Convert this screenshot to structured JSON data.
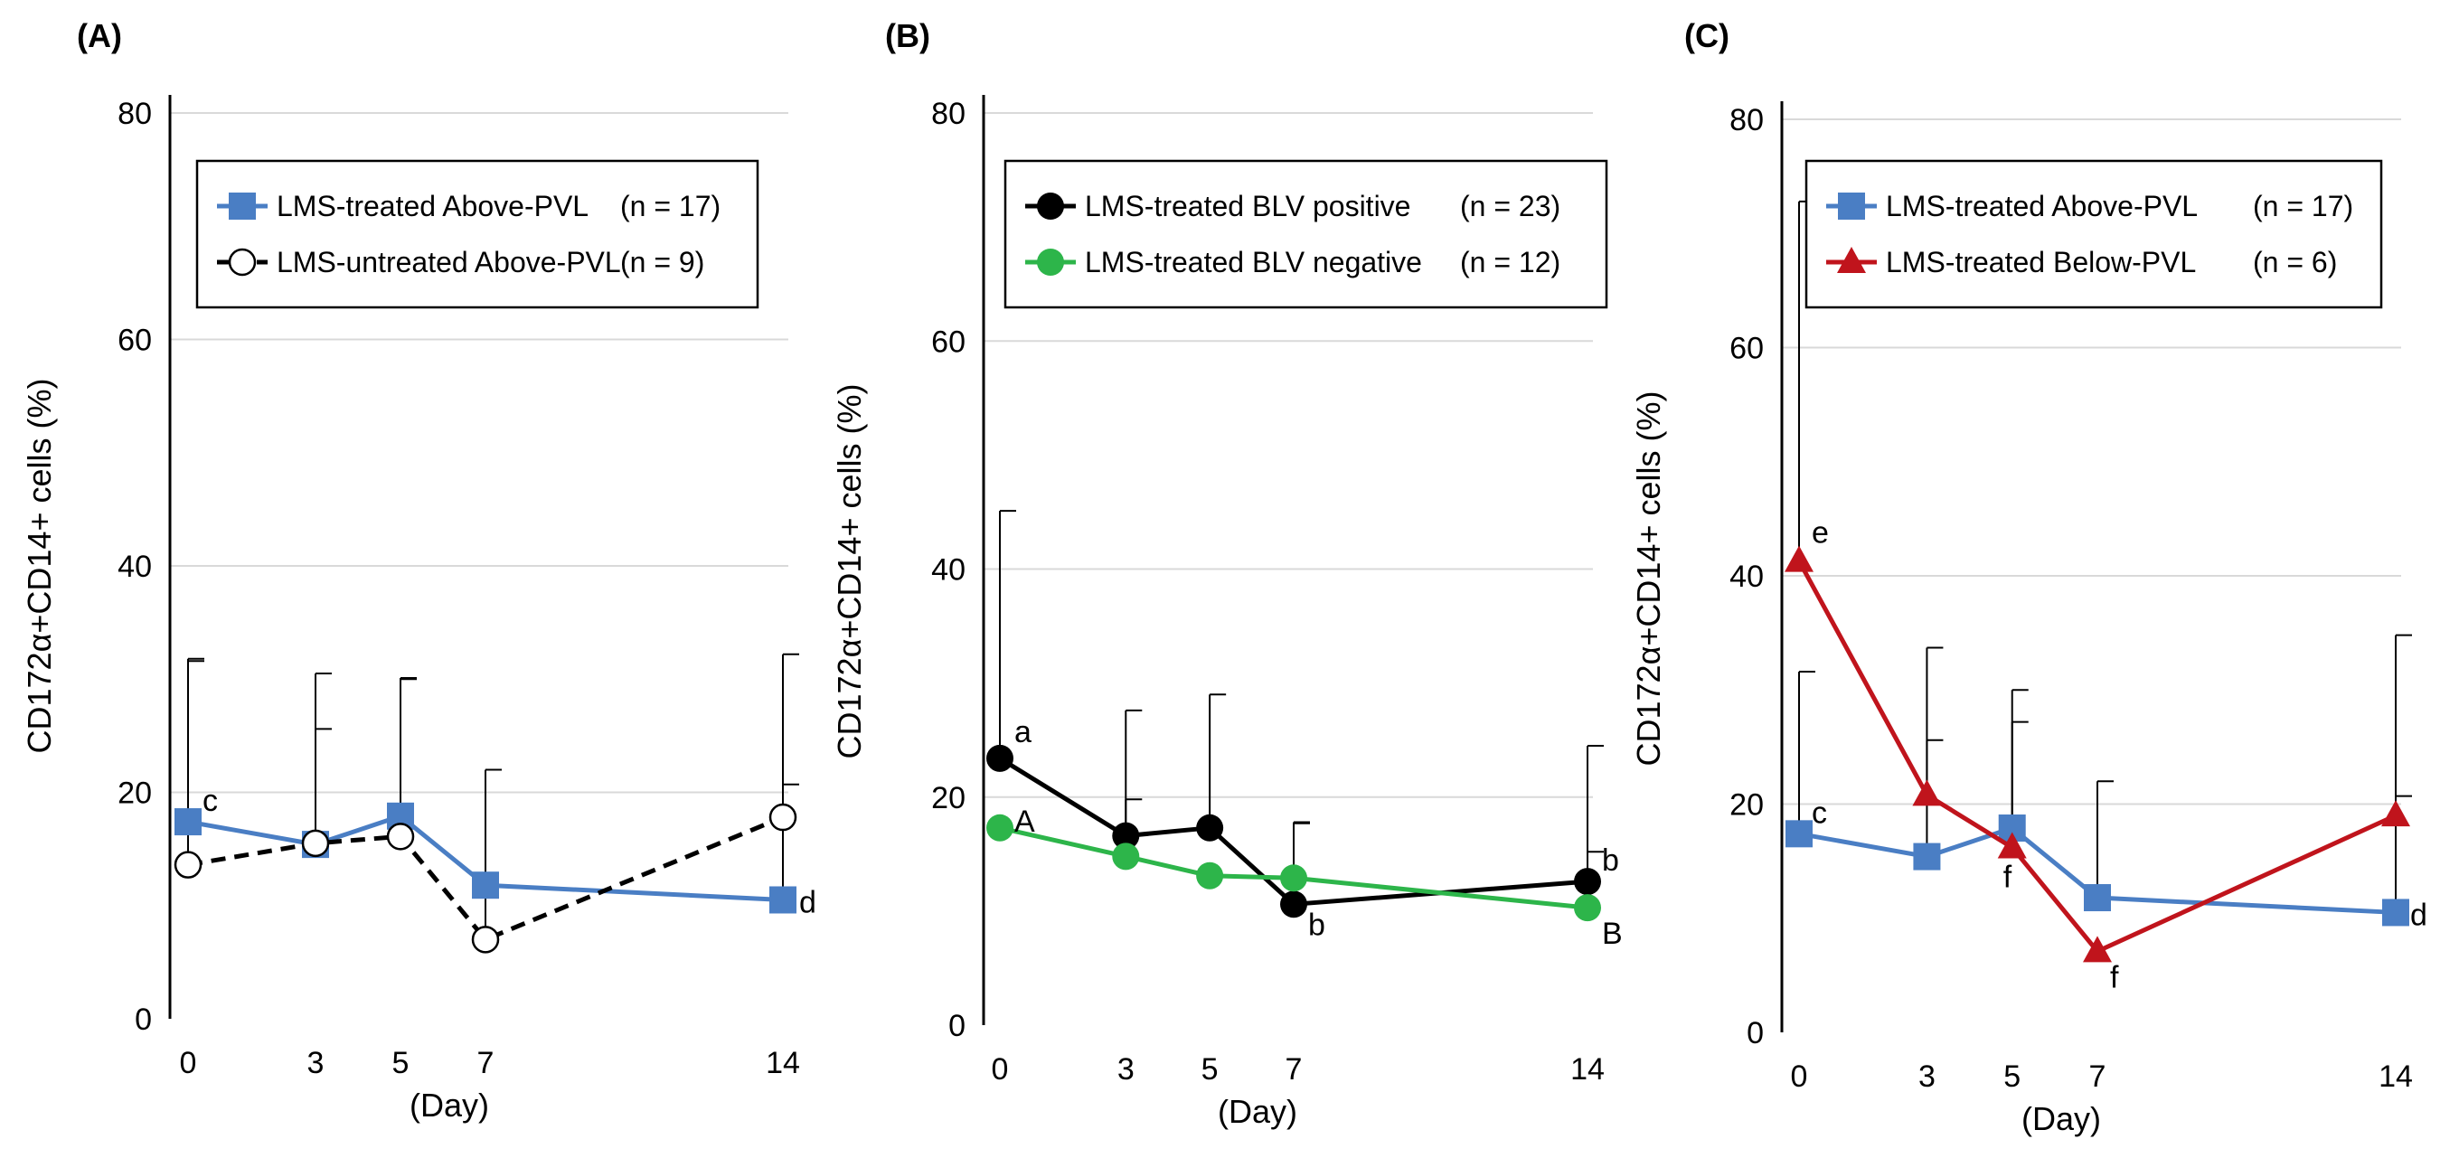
{
  "chart_data": [
    {
      "panel": "(A)",
      "type": "line",
      "ylabel": "CD172α+CD14+ cells (%)",
      "xlabel": "(Day)",
      "ylim": [
        0,
        80
      ],
      "yticks": [
        0,
        20,
        40,
        60,
        80
      ],
      "xlim": [
        -1,
        15
      ],
      "xticks": [
        0,
        3,
        5,
        7,
        14
      ],
      "grid": true,
      "legend_position": "top-center",
      "series": [
        {
          "name": "LMS-treated Above-PVL",
          "n": "(n = 17)",
          "color": "#4a7ec4",
          "marker": "square",
          "dash": false,
          "x": [
            0,
            3,
            5,
            7,
            14
          ],
          "values": [
            17.4,
            15.4,
            17.9,
            11.8,
            10.5
          ],
          "err": [
            14.2,
            10.2,
            12.1,
            10.2,
            10.2
          ]
        },
        {
          "name": "LMS-untreated Above-PVL",
          "n": "(n = 9)",
          "color": "#000000",
          "marker": "open-circle",
          "dash": true,
          "x": [
            0,
            3,
            5,
            7,
            14
          ],
          "values": [
            13.6,
            15.5,
            16.1,
            7.0,
            17.8
          ],
          "err": [
            18.2,
            15.0,
            14.0,
            15.0,
            14.4
          ]
        }
      ],
      "annotations": [
        {
          "text": "c",
          "x": 0,
          "y": 17.4
        },
        {
          "text": "d",
          "x": 14,
          "y": 10.5
        }
      ]
    },
    {
      "panel": "(B)",
      "type": "line",
      "ylabel": "CD172α+CD14+ cells (%)",
      "xlabel": "(Day)",
      "ylim": [
        0,
        80
      ],
      "yticks": [
        0,
        20,
        40,
        60,
        80
      ],
      "xlim": [
        -1,
        15
      ],
      "xticks": [
        0,
        3,
        5,
        7,
        14
      ],
      "grid": true,
      "legend_position": "top-center",
      "series": [
        {
          "name": "LMS-treated BLV positive",
          "n": "(n = 23)",
          "color": "#000000",
          "marker": "circle",
          "dash": false,
          "x": [
            0,
            3,
            5,
            7,
            14
          ],
          "values": [
            23.4,
            16.6,
            17.3,
            10.6,
            12.6
          ],
          "err": [
            21.7,
            11.0,
            11.7,
            7.2,
            11.9
          ]
        },
        {
          "name": "LMS-treated BLV negative",
          "n": "(n = 12)",
          "color": "#2db54a",
          "marker": "circle",
          "dash": false,
          "x": [
            0,
            3,
            5,
            7,
            14
          ],
          "values": [
            17.3,
            14.8,
            13.1,
            12.9,
            10.3
          ],
          "err": [
            0,
            5.0,
            0,
            4.8,
            4.9
          ]
        }
      ],
      "annotations": [
        {
          "text": "a",
          "x": 0,
          "y": 23.4
        },
        {
          "text": "A",
          "x": 0,
          "y": 17.3
        },
        {
          "text": "b",
          "x": 7,
          "y": 10.6
        },
        {
          "text": "b",
          "x": 14,
          "y": 12.6
        },
        {
          "text": "B",
          "x": 14,
          "y": 10.3
        }
      ]
    },
    {
      "panel": "(C)",
      "type": "line",
      "ylabel": "CD172α+CD14+ cells (%)",
      "xlabel": "(Day)",
      "ylim": [
        0,
        80
      ],
      "yticks": [
        0,
        20,
        40,
        60,
        80
      ],
      "xlim": [
        -1,
        15
      ],
      "xticks": [
        0,
        3,
        5,
        7,
        14
      ],
      "grid": true,
      "legend_position": "top-center",
      "series": [
        {
          "name": "LMS-treated Above-PVL",
          "n": "(n = 17)",
          "color": "#4a7ec4",
          "marker": "square",
          "dash": false,
          "x": [
            0,
            3,
            5,
            7,
            14
          ],
          "values": [
            17.4,
            15.4,
            17.9,
            11.8,
            10.5
          ],
          "err": [
            14.2,
            10.2,
            12.1,
            10.2,
            10.2
          ]
        },
        {
          "name": "LMS-treated Below-PVL",
          "n": "(n = 6)",
          "color": "#c0141c",
          "marker": "triangle",
          "dash": false,
          "x": [
            0,
            3,
            5,
            7,
            14
          ],
          "values": [
            41.3,
            20.8,
            16.2,
            7.1,
            19.0
          ],
          "err": [
            31.5,
            12.9,
            11.0,
            0,
            15.8
          ]
        }
      ],
      "annotations": [
        {
          "text": "e",
          "x": 0,
          "y": 41.3
        },
        {
          "text": "c",
          "x": 0,
          "y": 17.4
        },
        {
          "text": "f",
          "x": 5,
          "y": 16.2
        },
        {
          "text": "f",
          "x": 7,
          "y": 7.1
        },
        {
          "text": "d",
          "x": 14,
          "y": 10.5
        }
      ]
    }
  ]
}
